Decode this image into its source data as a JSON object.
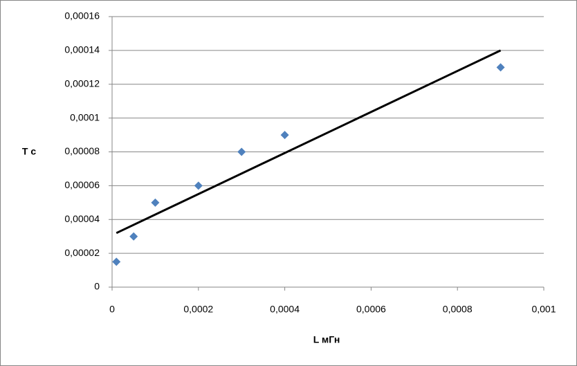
{
  "chart_data": {
    "type": "scatter",
    "x_label": "L мГн",
    "y_label": "T c",
    "series": [
      {
        "name": "T",
        "color": "#4f81bd",
        "x": [
          1e-05,
          5e-05,
          0.0001,
          0.0002,
          0.0003,
          0.0004,
          0.0009
        ],
        "values": [
          1.5e-05,
          3e-05,
          5e-05,
          6e-05,
          8e-05,
          9e-05,
          0.00013
        ]
      }
    ],
    "trendline": {
      "color": "#000000",
      "x": [
        1e-05,
        0.0009
      ],
      "values": [
        3.2e-05,
        0.00014
      ]
    },
    "xlim": [
      0,
      0.001
    ],
    "xticks": [
      0,
      {
        "value": 0.0002,
        "label": "0,0002"
      },
      {
        "value": 0.0004,
        "label": "0,0004"
      },
      {
        "value": 0.0006,
        "label": "0,0006"
      },
      {
        "value": 0.0008,
        "label": "0,0008"
      },
      {
        "value": 0.001,
        "label": "0,001"
      }
    ],
    "ylim": [
      0,
      0.00016
    ],
    "yticks": [
      0,
      {
        "value": 2e-05,
        "label": "0,00002"
      },
      {
        "value": 4e-05,
        "label": "0,00004"
      },
      {
        "value": 6e-05,
        "label": "0,00006"
      },
      {
        "value": 8e-05,
        "label": "0,00008"
      },
      {
        "value": 0.0001,
        "label": "0,0001"
      },
      {
        "value": 0.00012,
        "label": "0,00012"
      },
      {
        "value": 0.00014,
        "label": "0,00014"
      },
      {
        "value": 0.00016,
        "label": "0,00016"
      }
    ],
    "grid": true
  }
}
